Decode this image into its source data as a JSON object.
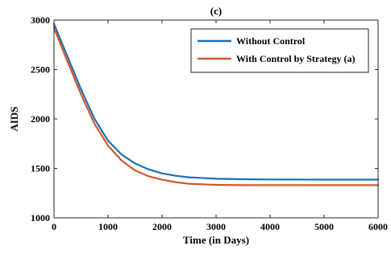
{
  "chart_data": {
    "type": "line",
    "title": "(c)",
    "xlabel": "Time (in Days)",
    "ylabel": "AIDS",
    "xlim": [
      0,
      6000
    ],
    "ylim": [
      1000,
      3000
    ],
    "xticks": [
      0,
      1000,
      2000,
      3000,
      4000,
      5000,
      6000
    ],
    "yticks": [
      1000,
      1500,
      2000,
      2500,
      3000
    ],
    "grid": false,
    "legend_position": "top-right",
    "x": [
      0,
      250,
      500,
      750,
      1000,
      1250,
      1500,
      1750,
      2000,
      2250,
      2500,
      3000,
      3500,
      4000,
      4500,
      5000,
      5500,
      6000
    ],
    "series": [
      {
        "name": "Without Control",
        "color": "#1f6fb2",
        "values": [
          2960,
          2630,
          2300,
          2000,
          1780,
          1640,
          1550,
          1490,
          1450,
          1425,
          1410,
          1395,
          1390,
          1388,
          1387,
          1386,
          1386,
          1386
        ]
      },
      {
        "name": "With Control by Strategy (a)",
        "color": "#d4562b",
        "values": [
          2920,
          2580,
          2250,
          1950,
          1730,
          1580,
          1480,
          1420,
          1385,
          1360,
          1345,
          1333,
          1330,
          1330,
          1330,
          1330,
          1330,
          1330
        ]
      }
    ]
  }
}
